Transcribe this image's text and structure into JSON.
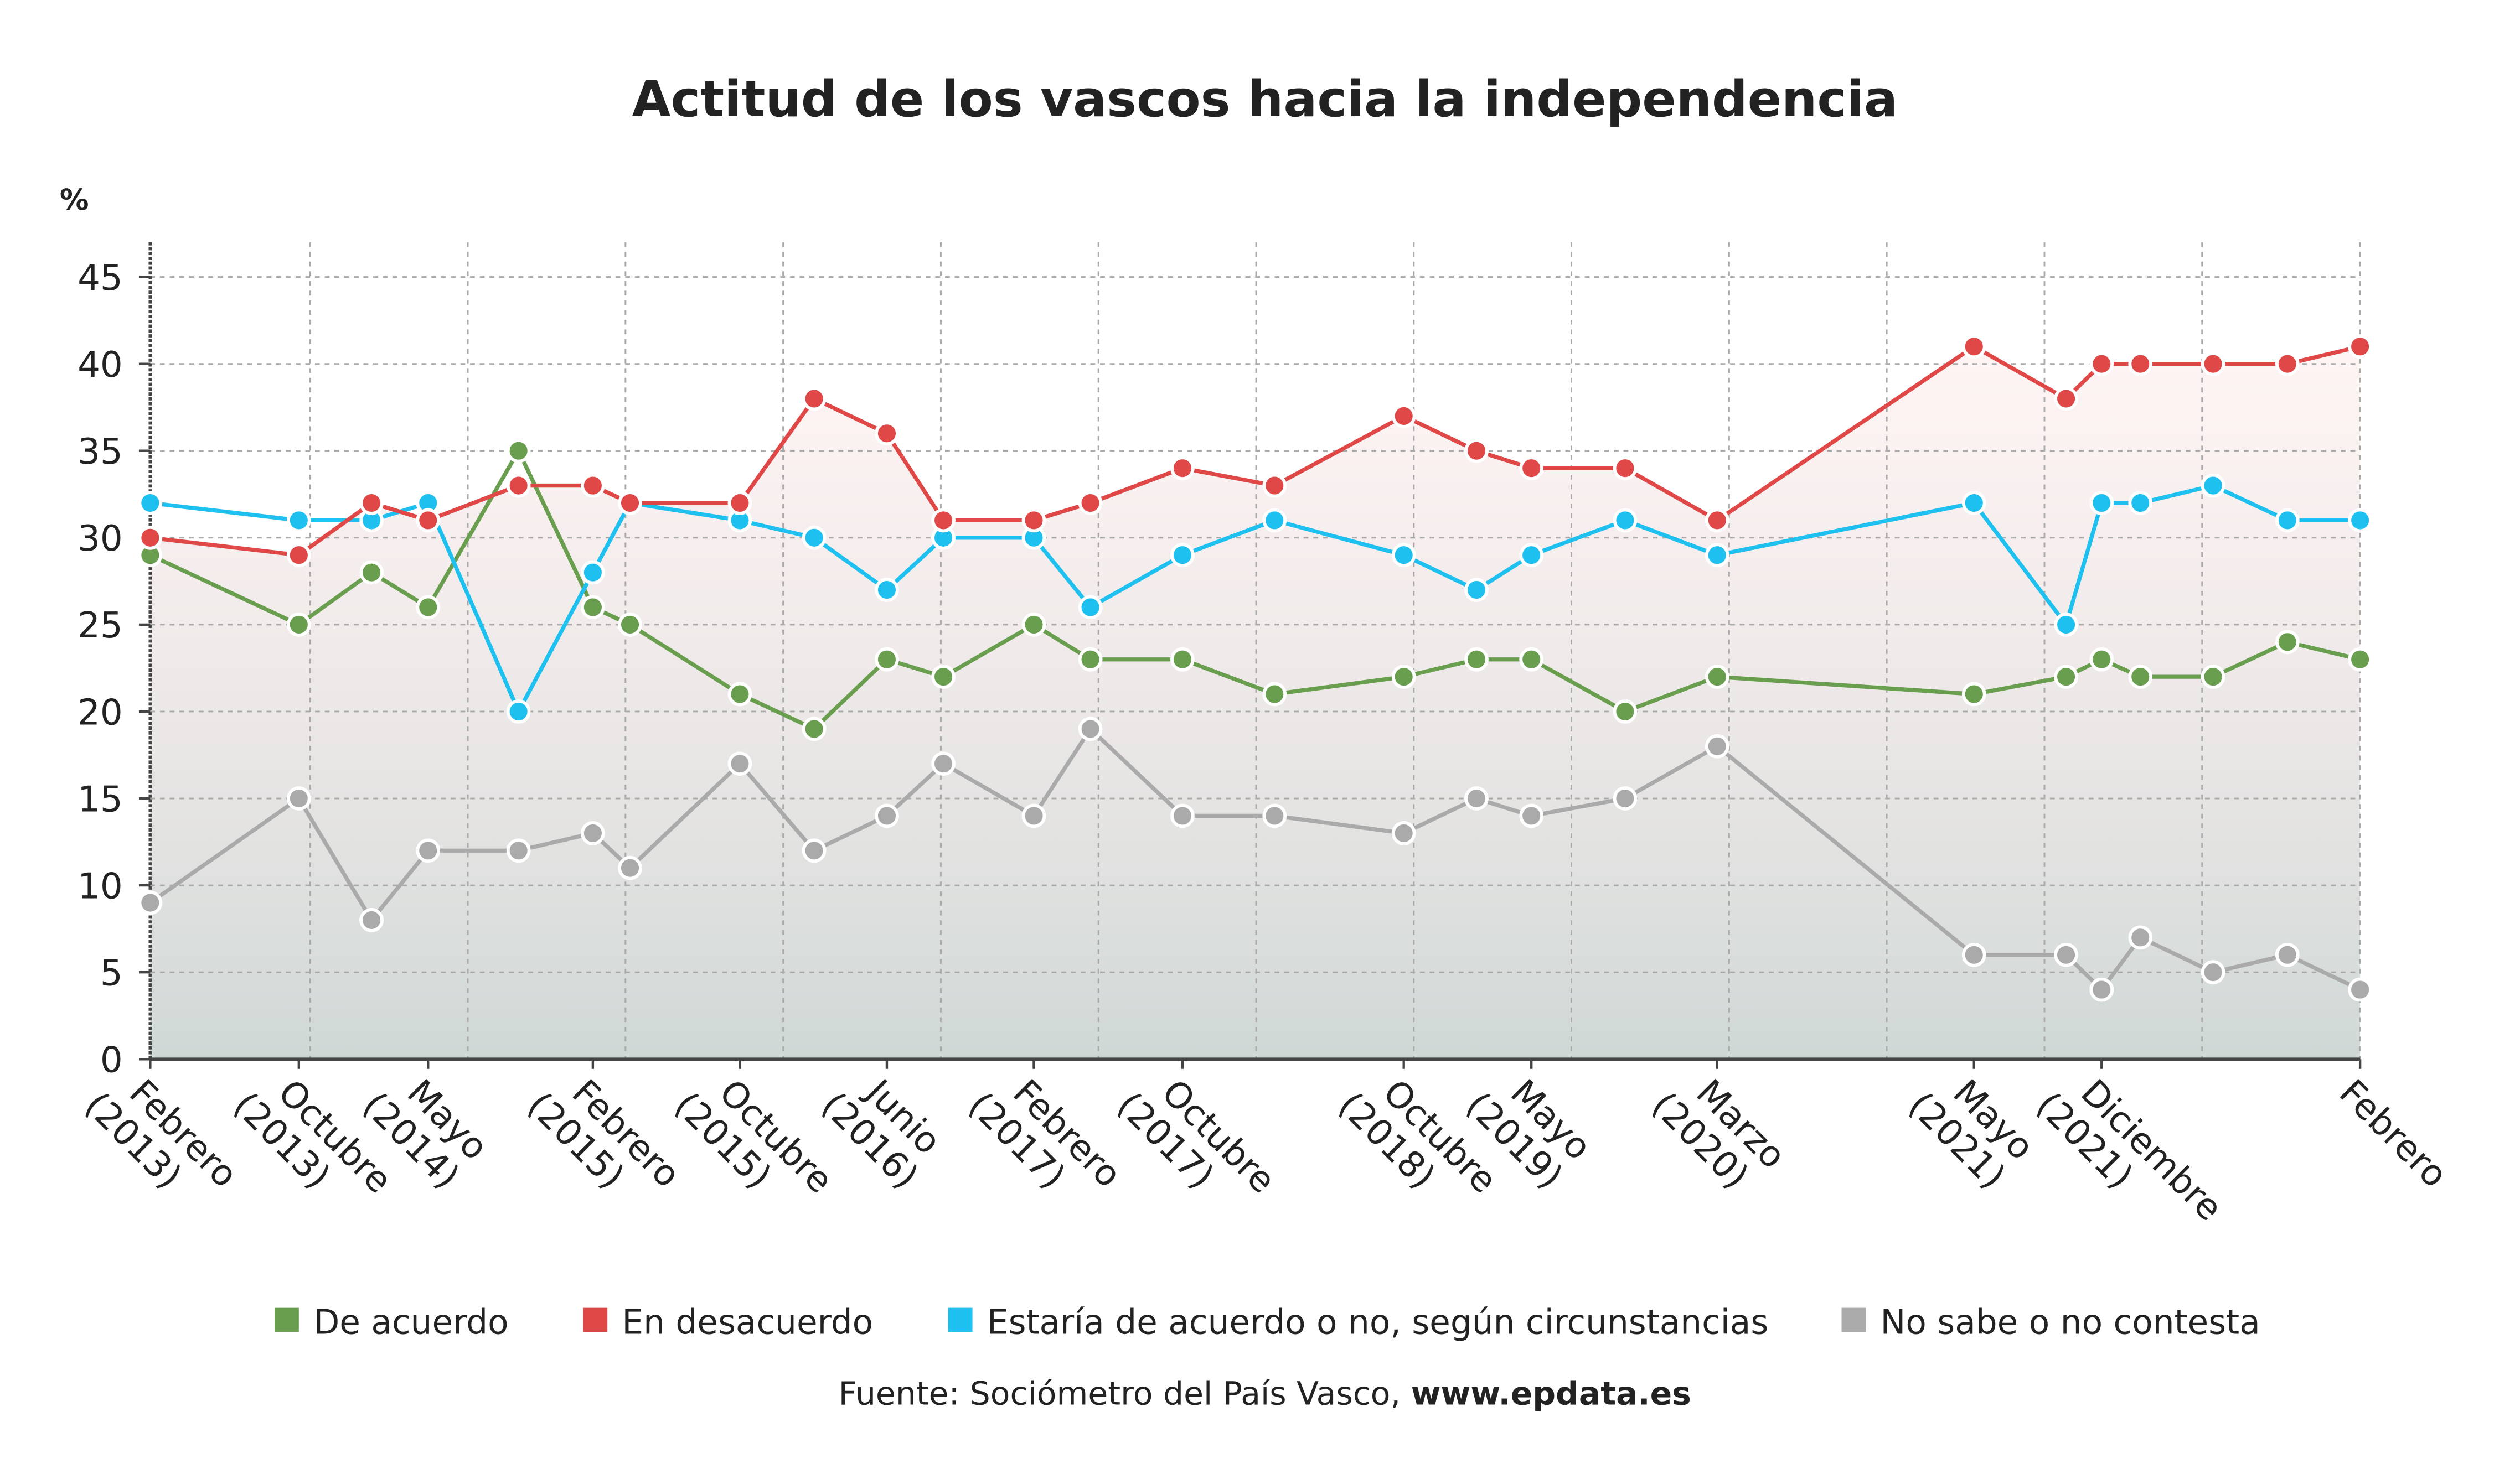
{
  "chart_data": {
    "type": "line",
    "title": "Actitud de los vascos hacia la independencia",
    "y_label": "%",
    "categories": [
      "Febrero (2013)",
      "Octubre (2013)",
      null,
      "Mayo (2014)",
      null,
      "Febrero (2015)",
      null,
      "Octubre (2015)",
      null,
      "Junio (2016)",
      null,
      "Febrero (2017)",
      null,
      "Octubre (2017)",
      null,
      "Octubre (2018)",
      null,
      "Mayo (2019)",
      null,
      "Marzo (2020)",
      "Mayo (2021)",
      null,
      "Diciembre (2021)",
      null,
      null,
      null,
      "Febrero"
    ],
    "series": [
      {
        "name": "De acuerdo",
        "color": "#6a9e4f",
        "values": [
          29,
          25,
          28,
          26,
          35,
          26,
          25,
          21,
          19,
          23,
          22,
          25,
          23,
          23,
          21,
          22,
          23,
          23,
          20,
          22,
          21,
          22,
          23,
          22,
          22,
          24,
          23
        ]
      },
      {
        "name": "En desacuerdo",
        "color": "#e04848",
        "values": [
          30,
          29,
          32,
          31,
          33,
          33,
          32,
          32,
          38,
          36,
          31,
          31,
          32,
          34,
          33,
          37,
          35,
          34,
          34,
          31,
          41,
          38,
          40,
          40,
          40,
          40,
          41
        ]
      },
      {
        "name": "Estaría de acuerdo o no, según circunstancias",
        "color": "#1ec0f0",
        "values": [
          32,
          31,
          31,
          32,
          20,
          28,
          32,
          31,
          30,
          27,
          30,
          30,
          26,
          29,
          31,
          29,
          27,
          29,
          31,
          29,
          32,
          25,
          32,
          32,
          33,
          31,
          31
        ]
      },
      {
        "name": "No sabe o no contesta",
        "color": "#aaaaaa",
        "values": [
          9,
          15,
          8,
          12,
          12,
          13,
          11,
          17,
          12,
          14,
          17,
          14,
          19,
          14,
          14,
          13,
          15,
          14,
          15,
          18,
          6,
          6,
          4,
          7,
          5,
          6,
          4
        ]
      }
    ],
    "ylim": [
      0,
      47
    ],
    "yticks": [
      0,
      5,
      10,
      15,
      20,
      25,
      30,
      35,
      40,
      45
    ],
    "grid": true,
    "source": "Fuente: Sociómetro del País Vasco,",
    "source_link": "www.epdata.es"
  }
}
